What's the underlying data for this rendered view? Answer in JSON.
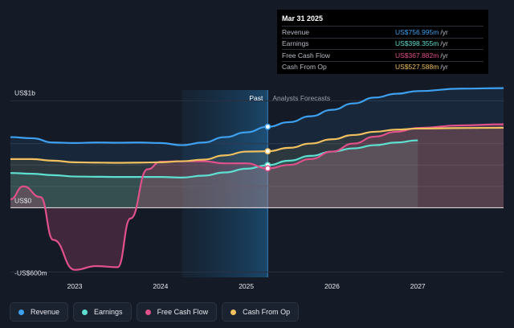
{
  "tooltip": {
    "date": "Mar 31 2025",
    "rows": [
      {
        "label": "Revenue",
        "value": "US$756.995m",
        "unit": "/yr",
        "color": "#3ea0f0"
      },
      {
        "label": "Earnings",
        "value": "US$398.355m",
        "unit": "/yr",
        "color": "#5ee0d0"
      },
      {
        "label": "Free Cash Flow",
        "value": "US$367.882m",
        "unit": "/yr",
        "color": "#e0508a"
      },
      {
        "label": "Cash From Op",
        "value": "US$527.588m",
        "unit": "/yr",
        "color": "#f0c060"
      }
    ]
  },
  "legend": [
    {
      "label": "Revenue",
      "color": "#3ea0f0"
    },
    {
      "label": "Earnings",
      "color": "#5ee0d0"
    },
    {
      "label": "Free Cash Flow",
      "color": "#e0508a"
    },
    {
      "label": "Cash From Op",
      "color": "#f0c060"
    }
  ],
  "chart_data": {
    "type": "line",
    "y_tick_labels": [
      {
        "value": 1000,
        "label": "US$1b"
      },
      {
        "value": 0,
        "label": "US$0"
      },
      {
        "value": -600,
        "label": "-US$600m"
      }
    ],
    "ylim": [
      -650,
      1100
    ],
    "xlim": [
      2022.25,
      2028.0
    ],
    "x_ticks": [
      {
        "value": 2023,
        "label": "2023"
      },
      {
        "value": 2024,
        "label": "2024"
      },
      {
        "value": 2025,
        "label": "2025"
      },
      {
        "value": 2026,
        "label": "2026"
      },
      {
        "value": 2027,
        "label": "2027"
      }
    ],
    "past_label": "Past",
    "forecast_label": "Analysts Forecasts",
    "divider_x": 2025.25,
    "highlight_start": 2024.25,
    "grid": true,
    "series": [
      {
        "name": "Revenue",
        "color": "#3ea0f0",
        "points": [
          [
            2022.25,
            660
          ],
          [
            2022.5,
            650
          ],
          [
            2022.75,
            610
          ],
          [
            2023.0,
            605
          ],
          [
            2023.25,
            610
          ],
          [
            2023.5,
            608
          ],
          [
            2023.75,
            610
          ],
          [
            2024.0,
            605
          ],
          [
            2024.25,
            585
          ],
          [
            2024.5,
            610
          ],
          [
            2024.75,
            660
          ],
          [
            2025.0,
            705
          ],
          [
            2025.25,
            757
          ],
          [
            2025.5,
            800
          ],
          [
            2025.75,
            855
          ],
          [
            2026.0,
            915
          ],
          [
            2026.25,
            975
          ],
          [
            2026.5,
            1030
          ],
          [
            2026.75,
            1065
          ],
          [
            2027.0,
            1090
          ],
          [
            2027.5,
            1113
          ],
          [
            2028.0,
            1118
          ]
        ]
      },
      {
        "name": "Earnings",
        "color": "#5ee0d0",
        "points": [
          [
            2022.25,
            325
          ],
          [
            2022.5,
            318
          ],
          [
            2022.75,
            305
          ],
          [
            2023.0,
            292
          ],
          [
            2023.25,
            290
          ],
          [
            2023.5,
            288
          ],
          [
            2023.75,
            288
          ],
          [
            2024.0,
            288
          ],
          [
            2024.25,
            282
          ],
          [
            2024.5,
            300
          ],
          [
            2024.75,
            330
          ],
          [
            2025.0,
            365
          ],
          [
            2025.25,
            398
          ],
          [
            2025.5,
            440
          ],
          [
            2025.75,
            485
          ],
          [
            2026.0,
            525
          ],
          [
            2026.25,
            555
          ],
          [
            2026.5,
            585
          ],
          [
            2026.75,
            610
          ],
          [
            2027.0,
            630
          ]
        ]
      },
      {
        "name": "Free Cash Flow",
        "color": "#e0508a",
        "points": [
          [
            2022.25,
            80
          ],
          [
            2022.4,
            200
          ],
          [
            2022.6,
            100
          ],
          [
            2022.75,
            -300
          ],
          [
            2023.0,
            -580
          ],
          [
            2023.25,
            -545
          ],
          [
            2023.5,
            -555
          ],
          [
            2023.65,
            -100
          ],
          [
            2023.85,
            360
          ],
          [
            2024.0,
            430
          ],
          [
            2024.25,
            435
          ],
          [
            2024.5,
            435
          ],
          [
            2024.75,
            415
          ],
          [
            2025.0,
            415
          ],
          [
            2025.25,
            368
          ],
          [
            2025.5,
            400
          ],
          [
            2025.75,
            455
          ],
          [
            2026.0,
            525
          ],
          [
            2026.25,
            600
          ],
          [
            2026.5,
            665
          ],
          [
            2026.75,
            710
          ],
          [
            2027.0,
            745
          ],
          [
            2027.5,
            770
          ],
          [
            2028.0,
            780
          ]
        ]
      },
      {
        "name": "Cash From Op",
        "color": "#f0c060",
        "points": [
          [
            2022.25,
            455
          ],
          [
            2022.5,
            455
          ],
          [
            2022.75,
            440
          ],
          [
            2023.0,
            425
          ],
          [
            2023.25,
            422
          ],
          [
            2023.5,
            420
          ],
          [
            2023.75,
            422
          ],
          [
            2024.0,
            425
          ],
          [
            2024.25,
            435
          ],
          [
            2024.5,
            450
          ],
          [
            2024.75,
            490
          ],
          [
            2025.0,
            525
          ],
          [
            2025.25,
            528
          ],
          [
            2025.5,
            560
          ],
          [
            2025.75,
            600
          ],
          [
            2026.0,
            640
          ],
          [
            2026.25,
            680
          ],
          [
            2026.5,
            710
          ],
          [
            2026.75,
            730
          ],
          [
            2027.0,
            740
          ],
          [
            2027.5,
            745
          ],
          [
            2028.0,
            748
          ]
        ]
      }
    ],
    "markers": [
      {
        "series": "Revenue",
        "x": 2025.25,
        "y": 757
      },
      {
        "series": "Cash From Op",
        "x": 2025.25,
        "y": 528
      },
      {
        "series": "Earnings",
        "x": 2025.25,
        "y": 398
      },
      {
        "series": "Free Cash Flow",
        "x": 2025.25,
        "y": 368
      }
    ]
  }
}
